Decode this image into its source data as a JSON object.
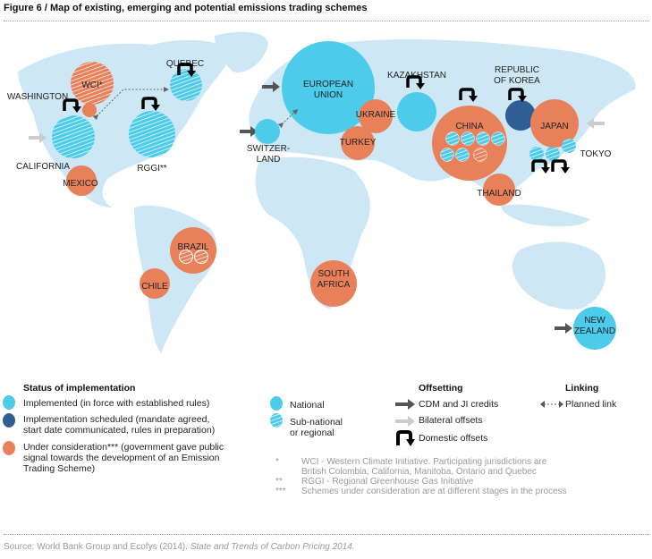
{
  "title": "Figure 6 / Map of existing, emerging and potential emissions trading schemes",
  "colors": {
    "implemented": "#4ccbea",
    "scheduled": "#2f5e95",
    "consideration": "#e8805a",
    "land": "#cde7f5",
    "border": "#ffffff"
  },
  "schemes": [
    {
      "id": "eu",
      "label": "EUROPEAN\nUNION",
      "status": "implemented",
      "type": "national"
    },
    {
      "id": "wci",
      "label": "WCI*",
      "status": "consideration",
      "type": "subnational"
    },
    {
      "id": "washington",
      "label": "WASHINGTON",
      "status": "consideration",
      "type": "national"
    },
    {
      "id": "california",
      "label": "CALIFORNIA",
      "status": "implemented",
      "type": "subnational"
    },
    {
      "id": "rggi",
      "label": "RGGI**",
      "status": "implemented",
      "type": "subnational"
    },
    {
      "id": "quebec",
      "label": "QUEBEC",
      "status": "implemented",
      "type": "subnational"
    },
    {
      "id": "mexico",
      "label": "MEXICO",
      "status": "consideration",
      "type": "national"
    },
    {
      "id": "switzerland",
      "label": "SWITZER-\nLAND",
      "status": "implemented",
      "type": "national"
    },
    {
      "id": "kazakhstan",
      "label": "KAZAKHSTAN",
      "status": "implemented",
      "type": "national"
    },
    {
      "id": "korea",
      "label": "REPUBLIC\nOF KOREA",
      "status": "scheduled",
      "type": "national"
    },
    {
      "id": "ukraine",
      "label": "UKRAINE",
      "status": "consideration",
      "type": "national"
    },
    {
      "id": "turkey",
      "label": "TURKEY",
      "status": "consideration",
      "type": "national"
    },
    {
      "id": "china",
      "label": "CHINA",
      "status": "consideration",
      "type": "national"
    },
    {
      "id": "japan",
      "label": "JAPAN",
      "status": "consideration",
      "type": "national"
    },
    {
      "id": "tokyo",
      "label": "TOKYO",
      "status": "implemented",
      "type": "subnational"
    },
    {
      "id": "thailand",
      "label": "THAILAND",
      "status": "consideration",
      "type": "national"
    },
    {
      "id": "brazil",
      "label": "BRAZIL",
      "status": "consideration",
      "type": "national"
    },
    {
      "id": "chile",
      "label": "CHILE",
      "status": "consideration",
      "type": "national"
    },
    {
      "id": "south_africa",
      "label": "SOUTH\nAFRICA",
      "status": "consideration",
      "type": "national"
    },
    {
      "id": "new_zealand",
      "label": "NEW\nZEALAND",
      "status": "implemented",
      "type": "national"
    }
  ],
  "legend": {
    "status_heading": "Status of implementation",
    "implemented": "Implemented (in force with established rules)",
    "scheduled_1": "Implementation scheduled (mandate agreed,",
    "scheduled_2": "start date communicated, rules in preparation)",
    "consideration_1": "Under consideration*** (government gave public",
    "consideration_2": "signal towards the development of an Emission",
    "consideration_3": "Trading Scheme)",
    "national": "National",
    "subnational_1": "Sub-national",
    "subnational_2": "or regional",
    "offsetting_heading": "Offsetting",
    "cdm": "CDM and JI credits",
    "bilateral": "Bilateral offsets",
    "domestic": "Domestic offsets",
    "linking_heading": "Linking",
    "planned": "Planned link"
  },
  "notes": [
    {
      "mark": "*",
      "text1": "WCI - Western Climate Initiative. Participating jurisdictions are",
      "text2": "British Colombia, California, Manitoba, Ontario and Quebec"
    },
    {
      "mark": "**",
      "text1": "RGGI - Regional Greenhouse Gas Initiative"
    },
    {
      "mark": "***",
      "text1": "Schemes under consideration are at different stages in the process"
    }
  ],
  "source_plain": "Source: World Bank Group and Ecofys (2014). ",
  "source_italic": "State and Trends of Carbon Pricing 2014."
}
